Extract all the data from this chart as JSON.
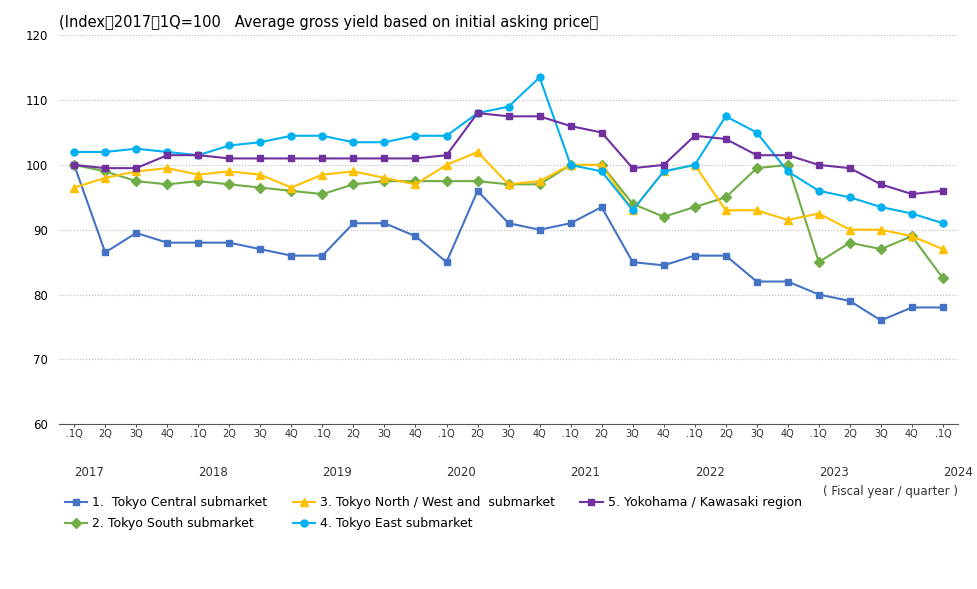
{
  "title": "(Index：2017：1Q=100   Average gross yield based on initial asking price）",
  "fiscal_label": "( Fiscal year / quarter )",
  "ylim": [
    60,
    120
  ],
  "yticks": [
    60,
    70,
    80,
    90,
    100,
    110,
    120
  ],
  "n_points": 29,
  "quarter_labels": [
    ".1Q",
    "2Q",
    "3Q",
    "4Q",
    ".1Q",
    "2Q",
    "3Q",
    "4Q",
    ".1Q",
    "2Q",
    "3Q",
    "4Q",
    ".1Q",
    "2Q",
    "3Q",
    "4Q",
    ".1Q",
    "2Q",
    "3Q",
    "4Q",
    ".1Q",
    "2Q",
    "3Q",
    "4Q",
    ".1Q",
    "2Q",
    "3Q",
    "4Q",
    ".1Q"
  ],
  "year_labels": [
    "2017",
    "2018",
    "2019",
    "2020",
    "2021",
    "2022",
    "2023",
    "2024"
  ],
  "year_positions": [
    0,
    4,
    8,
    12,
    16,
    20,
    24,
    28
  ],
  "series": {
    "tokyo_central": {
      "label": "1.  Tokyo Central submarket",
      "color": "#4472C4",
      "marker": "s",
      "markersize": 5,
      "values": [
        100.0,
        86.5,
        89.5,
        88.0,
        88.0,
        88.0,
        87.0,
        86.0,
        86.0,
        91.0,
        91.0,
        89.0,
        85.0,
        96.0,
        91.0,
        90.0,
        91.0,
        93.5,
        85.0,
        84.5,
        86.0,
        86.0,
        82.0,
        82.0,
        80.0,
        79.0,
        76.0,
        78.0,
        78.0
      ]
    },
    "tokyo_south": {
      "label": "2. Tokyo South submarket",
      "color": "#70AD47",
      "marker": "D",
      "markersize": 5,
      "values": [
        100.0,
        99.0,
        97.5,
        97.0,
        97.5,
        97.0,
        96.5,
        96.0,
        95.5,
        97.0,
        97.5,
        97.5,
        97.5,
        97.5,
        97.0,
        97.0,
        100.0,
        100.0,
        94.0,
        92.0,
        93.5,
        95.0,
        99.5,
        100.0,
        85.0,
        88.0,
        87.0,
        89.0,
        82.5
      ]
    },
    "tokyo_north": {
      "label": "3. Tokyo North / West and  submarket",
      "color": "#FFC000",
      "marker": "^",
      "markersize": 6,
      "values": [
        96.5,
        98.0,
        99.0,
        99.5,
        98.5,
        99.0,
        98.5,
        96.5,
        98.5,
        99.0,
        98.0,
        97.0,
        100.0,
        102.0,
        97.0,
        97.5,
        100.0,
        100.0,
        93.0,
        99.0,
        100.0,
        93.0,
        93.0,
        91.5,
        92.5,
        90.0,
        90.0,
        89.0,
        87.0
      ]
    },
    "tokyo_east": {
      "label": "4. Tokyo East submarket",
      "color": "#00B0F0",
      "marker": "o",
      "markersize": 5,
      "values": [
        102.0,
        102.0,
        102.5,
        102.0,
        101.5,
        103.0,
        103.5,
        104.5,
        104.5,
        103.5,
        103.5,
        104.5,
        104.5,
        108.0,
        109.0,
        113.5,
        100.0,
        99.0,
        93.0,
        99.0,
        100.0,
        107.5,
        105.0,
        99.0,
        96.0,
        95.0,
        93.5,
        92.5,
        91.0
      ]
    },
    "yokohama": {
      "label": "5. Yokohama / Kawasaki region",
      "color": "#7030A0",
      "marker": "s",
      "markersize": 5,
      "values": [
        100.0,
        99.5,
        99.5,
        101.5,
        101.5,
        101.0,
        101.0,
        101.0,
        101.0,
        101.0,
        101.0,
        101.0,
        101.5,
        108.0,
        107.5,
        107.5,
        106.0,
        105.0,
        99.5,
        100.0,
        104.5,
        104.0,
        101.5,
        101.5,
        100.0,
        99.5,
        97.0,
        95.5,
        96.0
      ]
    }
  },
  "bg_color": "#FFFFFF",
  "grid_color": "#BBBBBB",
  "title_fontsize": 10.5,
  "tick_fontsize": 8.5,
  "legend_fontsize": 9
}
